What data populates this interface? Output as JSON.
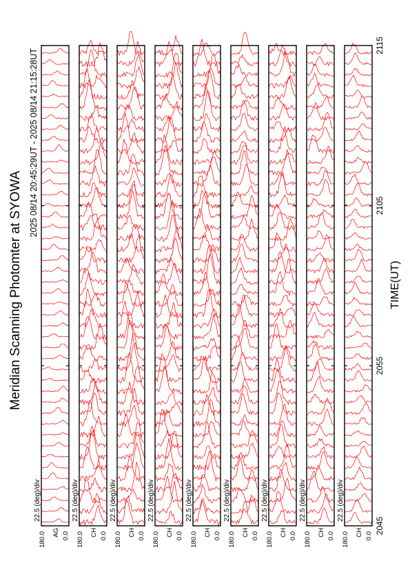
{
  "title": "Meridian Scanning Photomter at SYOWA",
  "subtitle": "2025 08/14 20:45:29UT - 2025 08/14 21:15:28UT",
  "xlabel": "TIME(UT)",
  "colors": {
    "trace": "#ff0000",
    "axis": "#000000",
    "background": "#ffffff"
  },
  "chart_data": {
    "type": "line",
    "orientation": "rotated-90-ccw",
    "x_ticks": [
      "2045",
      "2055",
      "2105",
      "2115"
    ],
    "x_range_ut": [
      "20:45:29",
      "21:15:28"
    ],
    "panels": [
      {
        "channel": "AG",
        "scale_label": "22.5 (deg)/div",
        "ymax_label": "180.0",
        "ymin_label": "0.0",
        "trace_count": 44,
        "amplitude": 0.2
      },
      {
        "channel": "CH",
        "scale_label": "22.5 (deg)/div",
        "ymax_label": "180.0",
        "ymin_label": "0.0",
        "trace_count": 44,
        "amplitude": 0.9
      },
      {
        "channel": "CH",
        "scale_label": "22.5 (deg)/div",
        "ymax_label": "180.0",
        "ymin_label": "0.0",
        "trace_count": 44,
        "amplitude": 0.9
      },
      {
        "channel": "CH",
        "scale_label": "22.5 (deg)/div",
        "ymax_label": "180.0",
        "ymin_label": "0.0",
        "trace_count": 44,
        "amplitude": 0.9
      },
      {
        "channel": "CH",
        "scale_label": "22.5 (deg)/div",
        "ymax_label": "180.0",
        "ymin_label": "0.0",
        "trace_count": 44,
        "amplitude": 0.9
      },
      {
        "channel": "CH",
        "scale_label": "22.5 (deg)/div",
        "ymax_label": "180.0",
        "ymin_label": "0.0",
        "trace_count": 44,
        "amplitude": 0.7
      },
      {
        "channel": "CH",
        "scale_label": "22.5 (deg)/div",
        "ymax_label": "180.0",
        "ymin_label": "0.0",
        "trace_count": 44,
        "amplitude": 0.8
      },
      {
        "channel": "CH",
        "scale_label": "22.5 (deg)/div",
        "ymax_label": "180.0",
        "ymin_label": "0.0",
        "trace_count": 44,
        "amplitude": 0.6
      },
      {
        "channel": "CH",
        "scale_label": "22.5 (deg)/div",
        "ymax_label": "180.0",
        "ymin_label": "0.0",
        "trace_count": 44,
        "amplitude": 0.4
      }
    ]
  }
}
